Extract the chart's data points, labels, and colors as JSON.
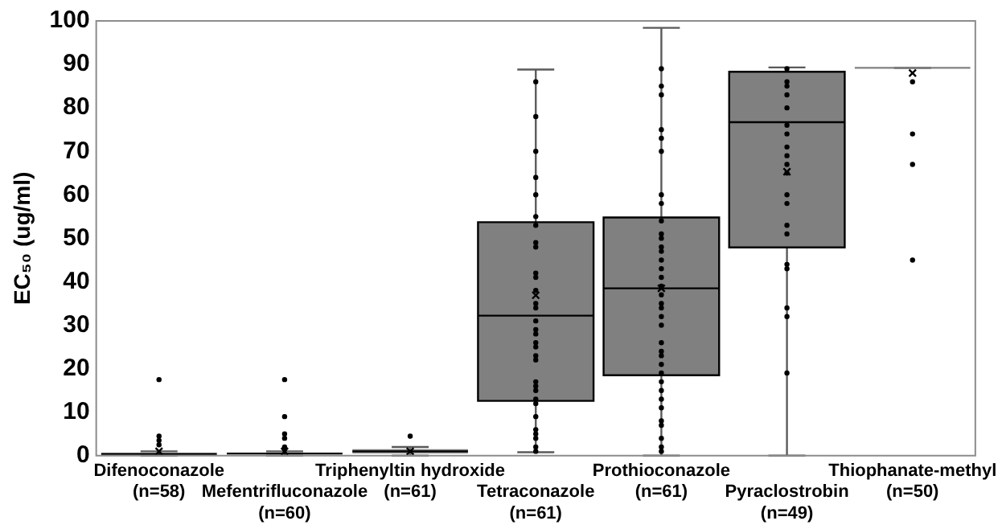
{
  "chart_data": {
    "type": "box",
    "ylabel": "EC₅₀ (ug/ml)",
    "ylim": [
      0,
      100
    ],
    "yticks": [
      0,
      10,
      20,
      30,
      40,
      50,
      60,
      70,
      80,
      90,
      100
    ],
    "grid": false,
    "legend": false,
    "categories": [
      "Difenoconazole (n=58)",
      "Mefentrifluconazole (n=60)",
      "Triphenyltin hydroxide (n=61)",
      "Tetraconazole (n=61)",
      "Prothioconazole (n=61)",
      "Pyraclostrobin (n=49)",
      "Thiophanate-methyl (n=50)"
    ],
    "series": [
      {
        "type": "box",
        "color": "#808080",
        "boxes": [
          {
            "low": 0,
            "q1": 0.2,
            "median": 0.4,
            "q3": 0.6,
            "high": 1,
            "mean": 1,
            "outliers": [
              17.5,
              4.5,
              3.5,
              2.5
            ]
          },
          {
            "low": 0,
            "q1": 0.3,
            "median": 0.5,
            "q3": 0.7,
            "high": 1,
            "mean": 1,
            "outliers": [
              17.5,
              9,
              5,
              4,
              2,
              1.5
            ]
          },
          {
            "low": 0,
            "q1": 0.5,
            "median": 1,
            "q3": 1.5,
            "high": 2,
            "mean": 1,
            "outliers": [
              4.5
            ]
          },
          {
            "low": 0.8,
            "q1": 12.6,
            "median": 32.2,
            "q3": 53.7,
            "high": 88.8,
            "mean": 36.9
          },
          {
            "low": 0,
            "q1": 18.5,
            "median": 38.5,
            "q3": 54.8,
            "high": 98.4,
            "mean": 38.5
          },
          {
            "low": 0,
            "q1": 47.9,
            "median": 76.7,
            "q3": 88.3,
            "high": 89.3,
            "mean": 65.3
          },
          {
            "low": 89.2,
            "q1": 89.2,
            "median": 89.2,
            "q3": 89.2,
            "high": 89.2,
            "mean": 88,
            "outliers": [
              86,
              74,
              67,
              45
            ]
          }
        ]
      },
      {
        "type": "scatter",
        "color": "#000000",
        "x": [
          "Tetraconazole (n=61)",
          "Tetraconazole (n=61)",
          "Tetraconazole (n=61)",
          "Tetraconazole (n=61)",
          "Tetraconazole (n=61)",
          "Tetraconazole (n=61)",
          "Tetraconazole (n=61)",
          "Tetraconazole (n=61)",
          "Tetraconazole (n=61)",
          "Tetraconazole (n=61)",
          "Tetraconazole (n=61)",
          "Tetraconazole (n=61)",
          "Tetraconazole (n=61)",
          "Tetraconazole (n=61)",
          "Tetraconazole (n=61)",
          "Tetraconazole (n=61)",
          "Tetraconazole (n=61)",
          "Tetraconazole (n=61)",
          "Tetraconazole (n=61)",
          "Tetraconazole (n=61)",
          "Tetraconazole (n=61)",
          "Tetraconazole (n=61)",
          "Tetraconazole (n=61)",
          "Tetraconazole (n=61)",
          "Tetraconazole (n=61)",
          "Tetraconazole (n=61)",
          "Tetraconazole (n=61)",
          "Tetraconazole (n=61)",
          "Tetraconazole (n=61)",
          "Tetraconazole (n=61)",
          "Tetraconazole (n=61)",
          "Tetraconazole (n=61)",
          "Prothioconazole (n=61)",
          "Prothioconazole (n=61)",
          "Prothioconazole (n=61)",
          "Prothioconazole (n=61)",
          "Prothioconazole (n=61)",
          "Prothioconazole (n=61)",
          "Prothioconazole (n=61)",
          "Prothioconazole (n=61)",
          "Prothioconazole (n=61)",
          "Prothioconazole (n=61)",
          "Prothioconazole (n=61)",
          "Prothioconazole (n=61)",
          "Prothioconazole (n=61)",
          "Prothioconazole (n=61)",
          "Prothioconazole (n=61)",
          "Prothioconazole (n=61)",
          "Prothioconazole (n=61)",
          "Prothioconazole (n=61)",
          "Prothioconazole (n=61)",
          "Prothioconazole (n=61)",
          "Prothioconazole (n=61)",
          "Prothioconazole (n=61)",
          "Prothioconazole (n=61)",
          "Prothioconazole (n=61)",
          "Prothioconazole (n=61)",
          "Prothioconazole (n=61)",
          "Prothioconazole (n=61)",
          "Prothioconazole (n=61)",
          "Prothioconazole (n=61)",
          "Prothioconazole (n=61)",
          "Prothioconazole (n=61)",
          "Prothioconazole (n=61)",
          "Prothioconazole (n=61)",
          "Prothioconazole (n=61)",
          "Prothioconazole (n=61)",
          "Prothioconazole (n=61)",
          "Pyraclostrobin (n=49)",
          "Pyraclostrobin (n=49)",
          "Pyraclostrobin (n=49)",
          "Pyraclostrobin (n=49)",
          "Pyraclostrobin (n=49)",
          "Pyraclostrobin (n=49)",
          "Pyraclostrobin (n=49)",
          "Pyraclostrobin (n=49)",
          "Pyraclostrobin (n=49)",
          "Pyraclostrobin (n=49)",
          "Pyraclostrobin (n=49)",
          "Pyraclostrobin (n=49)",
          "Pyraclostrobin (n=49)",
          "Pyraclostrobin (n=49)",
          "Pyraclostrobin (n=49)",
          "Pyraclostrobin (n=49)",
          "Pyraclostrobin (n=49)",
          "Pyraclostrobin (n=49)",
          "Pyraclostrobin (n=49)",
          "Pyraclostrobin (n=49)"
        ],
        "values": [
          86,
          78,
          70,
          64,
          60,
          55,
          53,
          49,
          48,
          42,
          41,
          38,
          35,
          34,
          31,
          29,
          28,
          26,
          25,
          23,
          22,
          17,
          16,
          15,
          13,
          12,
          9,
          6,
          5,
          4,
          2,
          1,
          89,
          85,
          83,
          75,
          73,
          70,
          60,
          58,
          54,
          51,
          50,
          48,
          47,
          45,
          43,
          41,
          39,
          37,
          35,
          34,
          32,
          30,
          26,
          24,
          23,
          21,
          19,
          17,
          15,
          13,
          11,
          8,
          7,
          4,
          2,
          1,
          89,
          86,
          85,
          83,
          80,
          76,
          74,
          71,
          69,
          67,
          65,
          60,
          58,
          53,
          51,
          44,
          43,
          34,
          32,
          19
        ]
      }
    ]
  }
}
